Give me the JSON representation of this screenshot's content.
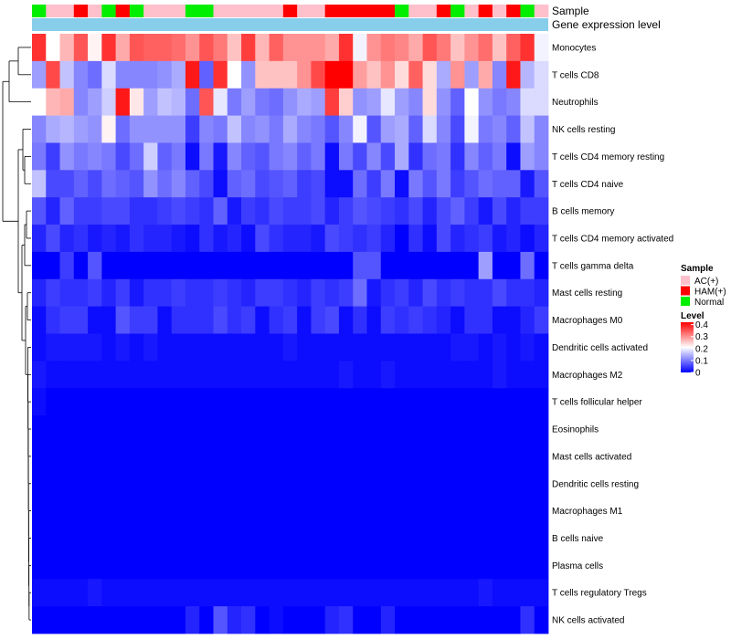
{
  "chart_data": {
    "type": "heatmap",
    "annotations": {
      "sample_label": "Sample",
      "expression_label": "Gene expression level",
      "sample_groups": [
        "Normal",
        "AC(+)",
        "AC(+)",
        "HAM(+)",
        "AC(+)",
        "Normal",
        "HAM(+)",
        "Normal",
        "AC(+)",
        "AC(+)",
        "AC(+)",
        "Normal",
        "Normal",
        "AC(+)",
        "AC(+)",
        "AC(+)",
        "AC(+)",
        "AC(+)",
        "HAM(+)",
        "AC(+)",
        "AC(+)",
        "HAM(+)",
        "HAM(+)",
        "HAM(+)",
        "HAM(+)",
        "HAM(+)",
        "Normal",
        "AC(+)",
        "AC(+)",
        "HAM(+)",
        "Normal",
        "AC(+)",
        "HAM(+)",
        "AC(+)",
        "HAM(+)",
        "Normal",
        "AC(+)"
      ]
    },
    "rows": [
      "Monocytes",
      "T cells CD8",
      "Neutrophils",
      "NK cells resting",
      "T cells CD4 memory resting",
      "T cells CD4 naive",
      "B cells memory",
      "T cells CD4 memory activated",
      "T cells gamma delta",
      "Mast cells resting",
      "Macrophages M0",
      "Dendritic cells activated",
      "Macrophages M2",
      "T cells follicular helper",
      "Eosinophils",
      "Mast cells activated",
      "Dendritic cells resting",
      "Macrophages M1",
      "B cells naive",
      "Plasma cells",
      "T cells regulatory  Tregs",
      "NK cells activated"
    ],
    "values": [
      [
        0.38,
        0.21,
        0.27,
        0.35,
        0.22,
        0.38,
        0.28,
        0.35,
        0.34,
        0.34,
        0.33,
        0.3,
        0.35,
        0.32,
        0.26,
        0.37,
        0.27,
        0.34,
        0.3,
        0.3,
        0.3,
        0.28,
        0.38,
        0.2,
        0.3,
        0.32,
        0.31,
        0.28,
        0.35,
        0.32,
        0.26,
        0.3,
        0.33,
        0.26,
        0.34,
        0.38,
        0.2
      ],
      [
        0.13,
        0.36,
        0.16,
        0.11,
        0.09,
        0.18,
        0.11,
        0.11,
        0.11,
        0.12,
        0.14,
        0.4,
        0.08,
        0.38,
        0.21,
        0.12,
        0.26,
        0.26,
        0.26,
        0.3,
        0.36,
        0.42,
        0.42,
        0.29,
        0.26,
        0.3,
        0.24,
        0.34,
        0.24,
        0.14,
        0.3,
        0.13,
        0.28,
        0.11,
        0.4,
        0.15,
        0.18
      ],
      [
        0.21,
        0.27,
        0.28,
        0.11,
        0.13,
        0.17,
        0.4,
        0.23,
        0.13,
        0.16,
        0.15,
        0.09,
        0.35,
        0.19,
        0.1,
        0.13,
        0.1,
        0.09,
        0.12,
        0.14,
        0.13,
        0.37,
        0.25,
        0.12,
        0.13,
        0.19,
        0.13,
        0.11,
        0.24,
        0.12,
        0.08,
        0.21,
        0.12,
        0.1,
        0.11,
        0.18,
        0.18
      ],
      [
        0.11,
        0.14,
        0.15,
        0.13,
        0.12,
        0.22,
        0.09,
        0.12,
        0.12,
        0.12,
        0.12,
        0.05,
        0.11,
        0.1,
        0.16,
        0.11,
        0.12,
        0.1,
        0.14,
        0.11,
        0.1,
        0.07,
        0.11,
        0.2,
        0.07,
        0.13,
        0.14,
        0.08,
        0.18,
        0.11,
        0.06,
        0.2,
        0.1,
        0.11,
        0.08,
        0.16,
        0.11
      ],
      [
        0.1,
        0.05,
        0.12,
        0.1,
        0.11,
        0.1,
        0.06,
        0.09,
        0.17,
        0.08,
        0.1,
        0.01,
        0.1,
        0.02,
        0.11,
        0.08,
        0.07,
        0.1,
        0.11,
        0.08,
        0.1,
        0.01,
        0.1,
        0.06,
        0.11,
        0.06,
        0.14,
        0.04,
        0.09,
        0.1,
        0.04,
        0.11,
        0.08,
        0.1,
        0.01,
        0.13,
        0.11
      ],
      [
        0.16,
        0.06,
        0.06,
        0.08,
        0.06,
        0.09,
        0.08,
        0.07,
        0.12,
        0.09,
        0.11,
        0.08,
        0.06,
        0.01,
        0.08,
        0.09,
        0.06,
        0.07,
        0.08,
        0.05,
        0.06,
        0.01,
        0.01,
        0.09,
        0.05,
        0.1,
        0.01,
        0.1,
        0.07,
        0.1,
        0.05,
        0.07,
        0.09,
        0.08,
        0.08,
        0.02,
        0.07
      ],
      [
        0.07,
        0.03,
        0.08,
        0.05,
        0.05,
        0.06,
        0.06,
        0.04,
        0.04,
        0.05,
        0.06,
        0.05,
        0.04,
        0.08,
        0.02,
        0.05,
        0.04,
        0.06,
        0.05,
        0.05,
        0.06,
        0.03,
        0.05,
        0.07,
        0.06,
        0.05,
        0.04,
        0.06,
        0.03,
        0.06,
        0.08,
        0.05,
        0.02,
        0.06,
        0.03,
        0.05,
        0.05
      ],
      [
        0.03,
        0.06,
        0.03,
        0.04,
        0.02,
        0.03,
        0.02,
        0.04,
        0.03,
        0.03,
        0.02,
        0.01,
        0.04,
        0.02,
        0.03,
        0.01,
        0.06,
        0.04,
        0.03,
        0.03,
        0.02,
        0.06,
        0.05,
        0.04,
        0.05,
        0.03,
        0.0,
        0.04,
        0.01,
        0.06,
        0.03,
        0.04,
        0.05,
        0.02,
        0.03,
        0.01,
        0.03
      ],
      [
        0.0,
        0.0,
        0.05,
        0.0,
        0.07,
        0.0,
        0.0,
        0.0,
        0.0,
        0.0,
        0.0,
        0.0,
        0.0,
        0.0,
        0.0,
        0.0,
        0.0,
        0.0,
        0.0,
        0.0,
        0.0,
        0.0,
        0.0,
        0.07,
        0.07,
        0.0,
        0.0,
        0.0,
        0.0,
        0.0,
        0.0,
        0.0,
        0.13,
        0.0,
        0.0,
        0.09,
        0.0
      ],
      [
        0.03,
        0.05,
        0.04,
        0.04,
        0.05,
        0.03,
        0.05,
        0.02,
        0.04,
        0.04,
        0.05,
        0.04,
        0.04,
        0.05,
        0.04,
        0.03,
        0.05,
        0.05,
        0.04,
        0.03,
        0.05,
        0.04,
        0.05,
        0.09,
        0.02,
        0.04,
        0.05,
        0.03,
        0.06,
        0.04,
        0.05,
        0.04,
        0.04,
        0.06,
        0.04,
        0.04,
        0.03
      ],
      [
        0.01,
        0.04,
        0.05,
        0.05,
        0.01,
        0.01,
        0.07,
        0.05,
        0.05,
        0.01,
        0.04,
        0.04,
        0.04,
        0.06,
        0.04,
        0.05,
        0.01,
        0.04,
        0.05,
        0.01,
        0.05,
        0.06,
        0.01,
        0.04,
        0.01,
        0.05,
        0.04,
        0.05,
        0.04,
        0.03,
        0.01,
        0.04,
        0.04,
        0.01,
        0.01,
        0.03,
        0.05
      ],
      [
        0.01,
        0.02,
        0.02,
        0.02,
        0.02,
        0.01,
        0.02,
        0.01,
        0.02,
        0.01,
        0.01,
        0.01,
        0.01,
        0.01,
        0.01,
        0.01,
        0.01,
        0.01,
        0.02,
        0.01,
        0.01,
        0.01,
        0.01,
        0.01,
        0.01,
        0.01,
        0.01,
        0.01,
        0.01,
        0.01,
        0.02,
        0.02,
        0.01,
        0.02,
        0.01,
        0.02,
        0.01
      ],
      [
        0.02,
        0.01,
        0.01,
        0.01,
        0.01,
        0.01,
        0.01,
        0.01,
        0.01,
        0.01,
        0.01,
        0.01,
        0.01,
        0.01,
        0.01,
        0.01,
        0.01,
        0.01,
        0.01,
        0.01,
        0.01,
        0.01,
        0.02,
        0.01,
        0.01,
        0.02,
        0.01,
        0.01,
        0.01,
        0.01,
        0.01,
        0.01,
        0.01,
        0.02,
        0.01,
        0.01,
        0.01
      ],
      [
        0.01,
        0.0,
        0.0,
        0.0,
        0.0,
        0.0,
        0.0,
        0.0,
        0.0,
        0.0,
        0.0,
        0.0,
        0.0,
        0.0,
        0.0,
        0.0,
        0.0,
        0.0,
        0.0,
        0.0,
        0.0,
        0.0,
        0.0,
        0.0,
        0.0,
        0.0,
        0.0,
        0.0,
        0.0,
        0.0,
        0.0,
        0.0,
        0.0,
        0.0,
        0.0,
        0.0,
        0.0
      ],
      [
        0.0,
        0.0,
        0.0,
        0.0,
        0.0,
        0.0,
        0.0,
        0.0,
        0.0,
        0.0,
        0.0,
        0.0,
        0.0,
        0.0,
        0.0,
        0.0,
        0.0,
        0.0,
        0.0,
        0.0,
        0.0,
        0.0,
        0.0,
        0.0,
        0.0,
        0.0,
        0.0,
        0.0,
        0.0,
        0.0,
        0.0,
        0.0,
        0.0,
        0.0,
        0.0,
        0.0,
        0.0
      ],
      [
        0.0,
        0.0,
        0.0,
        0.0,
        0.0,
        0.0,
        0.0,
        0.0,
        0.0,
        0.0,
        0.0,
        0.0,
        0.0,
        0.0,
        0.0,
        0.0,
        0.0,
        0.0,
        0.0,
        0.0,
        0.0,
        0.0,
        0.0,
        0.0,
        0.0,
        0.0,
        0.0,
        0.0,
        0.0,
        0.0,
        0.0,
        0.0,
        0.0,
        0.0,
        0.0,
        0.0,
        0.0
      ],
      [
        0.0,
        0.0,
        0.0,
        0.0,
        0.0,
        0.0,
        0.0,
        0.0,
        0.0,
        0.0,
        0.0,
        0.0,
        0.0,
        0.0,
        0.0,
        0.0,
        0.0,
        0.0,
        0.0,
        0.0,
        0.0,
        0.0,
        0.0,
        0.0,
        0.0,
        0.0,
        0.0,
        0.0,
        0.0,
        0.0,
        0.0,
        0.0,
        0.0,
        0.0,
        0.0,
        0.0,
        0.0
      ],
      [
        0.0,
        0.0,
        0.0,
        0.0,
        0.0,
        0.0,
        0.0,
        0.0,
        0.0,
        0.0,
        0.0,
        0.0,
        0.0,
        0.0,
        0.0,
        0.0,
        0.0,
        0.0,
        0.0,
        0.0,
        0.0,
        0.0,
        0.0,
        0.0,
        0.0,
        0.0,
        0.0,
        0.0,
        0.0,
        0.0,
        0.0,
        0.0,
        0.0,
        0.0,
        0.0,
        0.0,
        0.0
      ],
      [
        0.0,
        0.0,
        0.0,
        0.0,
        0.0,
        0.0,
        0.0,
        0.0,
        0.0,
        0.0,
        0.0,
        0.0,
        0.0,
        0.0,
        0.0,
        0.0,
        0.0,
        0.0,
        0.0,
        0.0,
        0.0,
        0.0,
        0.0,
        0.0,
        0.0,
        0.0,
        0.0,
        0.0,
        0.0,
        0.0,
        0.0,
        0.0,
        0.0,
        0.0,
        0.0,
        0.0,
        0.0
      ],
      [
        0.0,
        0.0,
        0.0,
        0.0,
        0.0,
        0.0,
        0.0,
        0.0,
        0.0,
        0.0,
        0.0,
        0.0,
        0.0,
        0.0,
        0.0,
        0.0,
        0.0,
        0.0,
        0.0,
        0.0,
        0.0,
        0.0,
        0.0,
        0.0,
        0.0,
        0.0,
        0.0,
        0.0,
        0.0,
        0.0,
        0.0,
        0.0,
        0.0,
        0.0,
        0.0,
        0.0,
        0.0
      ],
      [
        0.01,
        0.01,
        0.01,
        0.01,
        0.02,
        0.01,
        0.01,
        0.01,
        0.01,
        0.01,
        0.01,
        0.01,
        0.01,
        0.01,
        0.01,
        0.01,
        0.01,
        0.01,
        0.01,
        0.01,
        0.01,
        0.01,
        0.01,
        0.01,
        0.01,
        0.01,
        0.01,
        0.01,
        0.01,
        0.01,
        0.01,
        0.01,
        0.02,
        0.01,
        0.01,
        0.01,
        0.01
      ],
      [
        0.0,
        0.0,
        0.0,
        0.0,
        0.0,
        0.0,
        0.0,
        0.0,
        0.0,
        0.0,
        0.0,
        0.03,
        0.0,
        0.07,
        0.03,
        0.04,
        0.0,
        0.01,
        0.0,
        0.0,
        0.0,
        0.03,
        0.04,
        0.0,
        0.0,
        0.03,
        0.0,
        0.0,
        0.0,
        0.0,
        0.0,
        0.0,
        0.0,
        0.0,
        0.0,
        0.04,
        0.0
      ]
    ],
    "legend_sample": {
      "title": "Sample",
      "entries": [
        {
          "label": "AC(+)",
          "color": "#FFC0CB"
        },
        {
          "label": "HAM(+)",
          "color": "#FF0000"
        },
        {
          "label": "Normal",
          "color": "#00EE00"
        }
      ]
    },
    "legend_level": {
      "title": "Level",
      "ticks": [
        "0.4",
        "0.3",
        "0.2",
        "0.1",
        "0"
      ],
      "tick_values": [
        0.4,
        0.3,
        0.2,
        0.1,
        0
      ],
      "range": [
        0,
        0.42
      ]
    },
    "colors": {
      "low": "#0000FF",
      "mid": "#FFFFFF",
      "high": "#FF0000",
      "expression_bar": "#87CEEB"
    }
  }
}
